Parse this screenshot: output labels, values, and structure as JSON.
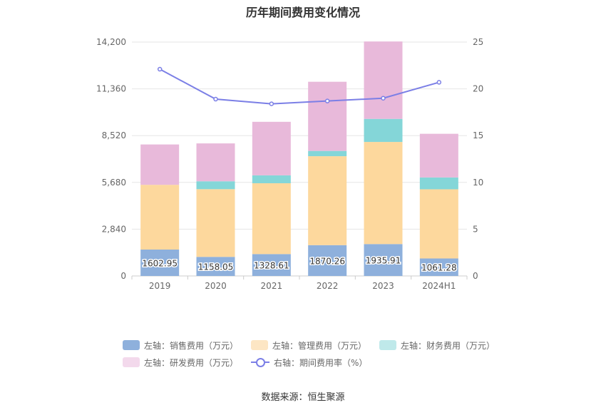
{
  "chart_data": {
    "type": "bar",
    "title": "历年期间费用变化情况",
    "categories": [
      "2019",
      "2020",
      "2021",
      "2022",
      "2023",
      "2024H1"
    ],
    "stacked": true,
    "left_axis": {
      "ticks": [
        "0",
        "2,840",
        "5,680",
        "8,520",
        "11,360",
        "14,200"
      ],
      "ylim": [
        0,
        14200
      ]
    },
    "right_axis": {
      "ticks": [
        "0",
        "5",
        "10",
        "15",
        "20",
        "25"
      ],
      "ylim": [
        0,
        25
      ]
    },
    "series": [
      {
        "name": "左轴：销售费用（万元）",
        "axis": "left",
        "type": "bar",
        "color": "#8eb0dc",
        "values": [
          1602.95,
          1158.05,
          1328.61,
          1870.26,
          1935.91,
          1061.28
        ],
        "labels": [
          "1602.95",
          "1158.05",
          "1328.61",
          "1870.26",
          "1935.91",
          "1061.28"
        ]
      },
      {
        "name": "左轴：管理费用（万元）",
        "axis": "left",
        "type": "bar",
        "color": "#fdd89d",
        "values": [
          3930,
          4110,
          4300,
          5400,
          6200,
          4200
        ]
      },
      {
        "name": "左轴：财务费用（万元）",
        "axis": "left",
        "type": "bar",
        "color": "#84d6d8",
        "values": [
          -30,
          480,
          480,
          320,
          1400,
          720
        ]
      },
      {
        "name": "左轴：研发费用（万元）",
        "axis": "left",
        "type": "bar",
        "color": "#e8b9da",
        "values": [
          2450,
          2300,
          3250,
          4200,
          4700,
          2650
        ]
      },
      {
        "name": "右轴：期间费用率（%）",
        "axis": "right",
        "type": "line",
        "color": "#7b7fe6",
        "values": [
          22.1,
          18.9,
          18.4,
          18.7,
          19.0,
          20.7
        ]
      }
    ],
    "legend_position": "bottom",
    "grid": true
  },
  "source": "数据来源：恒生聚源"
}
